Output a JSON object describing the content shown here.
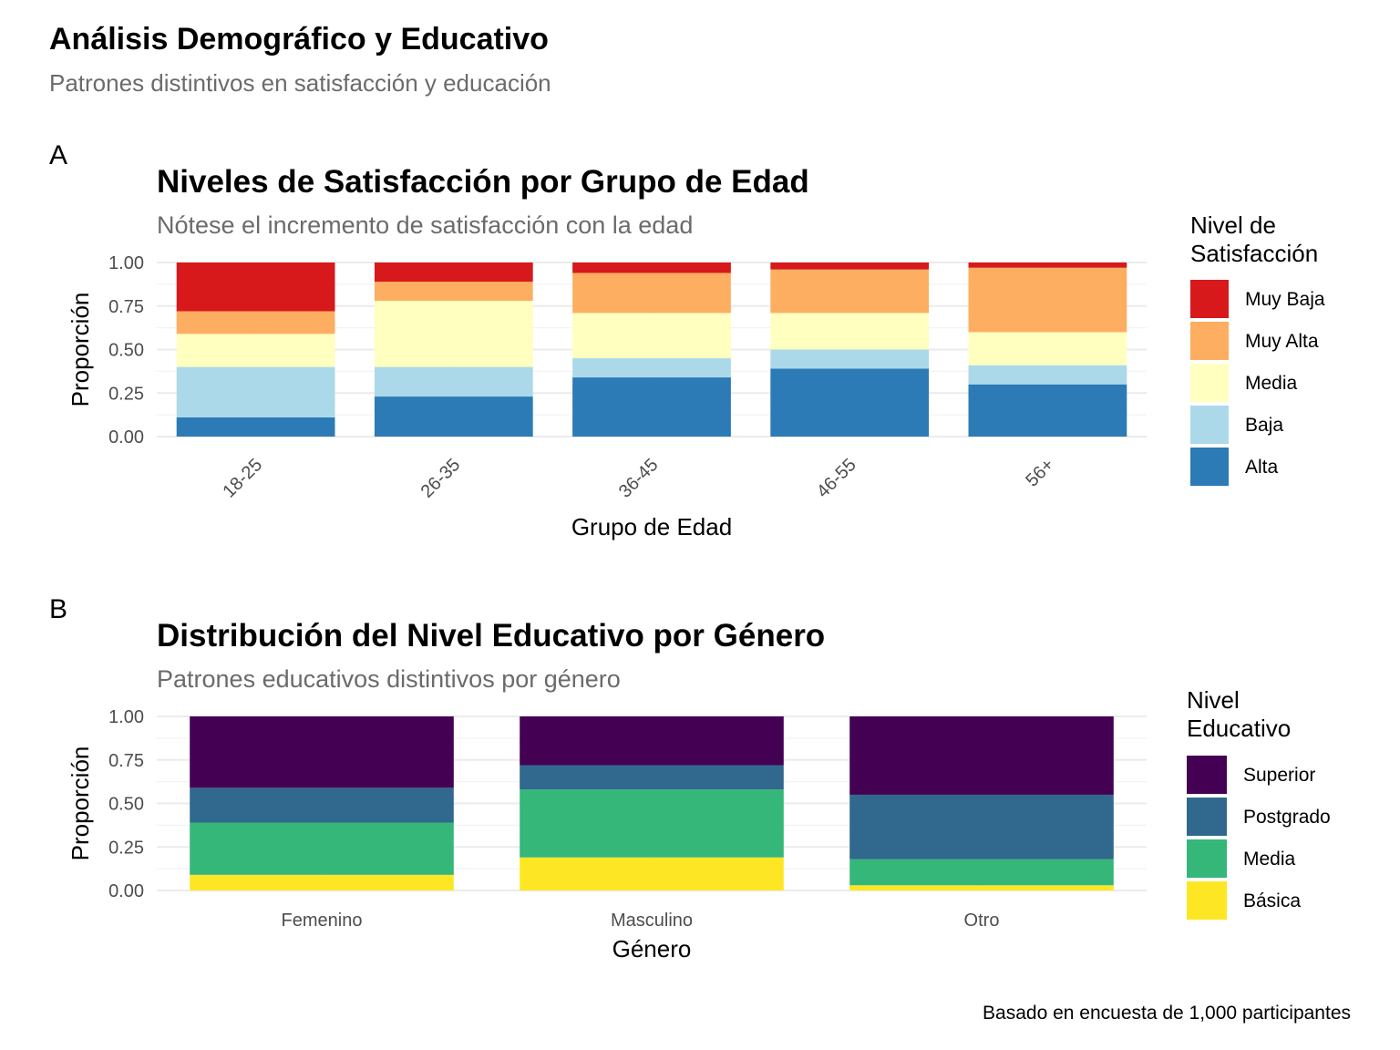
{
  "title": "Análisis Demográfico y Educativo",
  "subtitle": "Patrones distintivos en satisfacción y educación",
  "caption": "Basado en encuesta de 1,000 participantes",
  "chart_data": [
    {
      "tag": "A",
      "type": "bar",
      "stacked": true,
      "title": "Niveles de Satisfacción por Grupo de Edad",
      "subtitle": "Nótese el incremento de satisfacción con la edad",
      "xlabel": "Grupo de Edad",
      "ylabel": "Proporción",
      "ylim": [
        0,
        1
      ],
      "yticks": [
        "0.00",
        "0.25",
        "0.50",
        "0.75",
        "1.00"
      ],
      "x_tick_rotation": 45,
      "grid": true,
      "legend_title": "Nivel de\nSatisfacción",
      "legend_position": "right",
      "categories": [
        "18-25",
        "26-35",
        "36-45",
        "46-55",
        "56+"
      ],
      "series": [
        {
          "name": "Alta",
          "color": "#2c7bb6",
          "values": [
            0.11,
            0.23,
            0.34,
            0.39,
            0.3
          ]
        },
        {
          "name": "Baja",
          "color": "#abd9e9",
          "values": [
            0.29,
            0.17,
            0.11,
            0.11,
            0.11
          ]
        },
        {
          "name": "Media",
          "color": "#ffffbf",
          "values": [
            0.19,
            0.38,
            0.26,
            0.21,
            0.19
          ]
        },
        {
          "name": "Muy Alta",
          "color": "#fdae61",
          "values": [
            0.13,
            0.11,
            0.23,
            0.25,
            0.37
          ]
        },
        {
          "name": "Muy Baja",
          "color": "#d7191c",
          "values": [
            0.28,
            0.11,
            0.06,
            0.04,
            0.03
          ]
        }
      ],
      "legend_order": [
        "Muy Baja",
        "Muy Alta",
        "Media",
        "Baja",
        "Alta"
      ]
    },
    {
      "tag": "B",
      "type": "bar",
      "stacked": true,
      "title": "Distribución del Nivel Educativo por Género",
      "subtitle": "Patrones educativos distintivos por género",
      "xlabel": "Género",
      "ylabel": "Proporción",
      "ylim": [
        0,
        1
      ],
      "yticks": [
        "0.00",
        "0.25",
        "0.50",
        "0.75",
        "1.00"
      ],
      "x_tick_rotation": 0,
      "grid": true,
      "legend_title": "Nivel\nEducativo",
      "legend_position": "right",
      "categories": [
        "Femenino",
        "Masculino",
        "Otro"
      ],
      "series": [
        {
          "name": "Básica",
          "color": "#fde725",
          "values": [
            0.09,
            0.19,
            0.03
          ]
        },
        {
          "name": "Media",
          "color": "#35b779",
          "values": [
            0.3,
            0.39,
            0.15
          ]
        },
        {
          "name": "Postgrado",
          "color": "#31688e",
          "values": [
            0.2,
            0.14,
            0.37
          ]
        },
        {
          "name": "Superior",
          "color": "#440154",
          "values": [
            0.41,
            0.28,
            0.45
          ]
        }
      ],
      "legend_order": [
        "Superior",
        "Postgrado",
        "Media",
        "Básica"
      ]
    }
  ]
}
